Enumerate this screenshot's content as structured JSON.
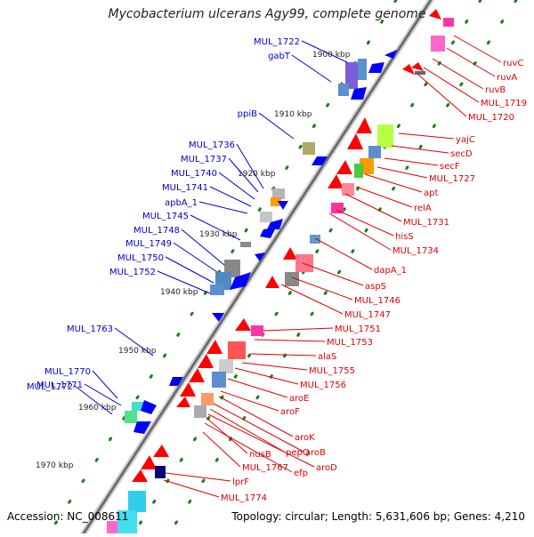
{
  "title": "Mycobacterium ulcerans Agy99, complete genome",
  "footer": {
    "accession": "Accession: NC_008611",
    "topology": "Topology: circular; Length: 5,631,606 bp; Genes: 4,210"
  },
  "colors": {
    "backbone": "#8c8c8c",
    "forward_label": "#0000cc",
    "reverse_label": "#dd0000",
    "forward_feature": "#0000ff",
    "reverse_feature": "#ff0000",
    "tick_dots": "#1a7f1a"
  },
  "ticks": [
    "1900 kbp",
    "1910 kbp",
    "1920 kbp",
    "1930 kbp",
    "1940 kbp",
    "1950 kbp",
    "1960 kbp",
    "1970 kbp"
  ],
  "forward_genes": [
    "MUL_1722",
    "gabT",
    "ppiB",
    "MUL_1736",
    "MUL_1737",
    "MUL_1740",
    "MUL_1741",
    "apbA_1",
    "MUL_1745",
    "MUL_1748",
    "MUL_1749",
    "MUL_1750",
    "MUL_1752",
    "MUL_1763",
    "MUL_1770",
    "MUL_1771",
    "MUL_1772"
  ],
  "reverse_genes": [
    "ruvC",
    "ruvA",
    "ruvB",
    "MUL_1719",
    "MUL_1720",
    "yajC",
    "secD",
    "secF",
    "MUL_1727",
    "apt",
    "relA",
    "MUL_1731",
    "hisS",
    "MUL_1734",
    "dapA_1",
    "aspS",
    "MUL_1746",
    "MUL_1747",
    "MUL_1751",
    "MUL_1753",
    "alaS",
    "MUL_1755",
    "MUL_1756",
    "aroE",
    "aroF",
    "aroK",
    "aroB",
    "pepQ",
    "aroD",
    "nusB",
    "efp",
    "MUL_1767",
    "lprF",
    "MUL_1774"
  ]
}
